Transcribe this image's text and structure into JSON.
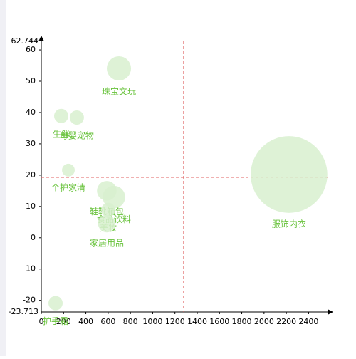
{
  "chart_data": {
    "type": "bubble",
    "points": [
      {
        "name": "珠宝文玩",
        "x": 697,
        "y": 54.1,
        "size": 290
      },
      {
        "name": "生鲜",
        "x": 179,
        "y": 38.9,
        "size": 100
      },
      {
        "name": "母婴宠物",
        "x": 319,
        "y": 38.4,
        "size": 100
      },
      {
        "name": "个护家清",
        "x": 243,
        "y": 21.6,
        "size": 80
      },
      {
        "name": "服饰内衣",
        "x": 2224,
        "y": 20.2,
        "size": 2900
      },
      {
        "name": "鞋靴箱包",
        "x": 588,
        "y": 15.0,
        "size": 190
      },
      {
        "name": "食品饮料",
        "x": 652,
        "y": 13.0,
        "size": 250
      },
      {
        "name": "美妆",
        "x": 601,
        "y": 8.9,
        "size": 100
      },
      {
        "name": "家居用品",
        "x": 588,
        "y": 4.5,
        "size": 150
      },
      {
        "name": "护手霜",
        "x": 128,
        "y": -20.9,
        "size": 100
      }
    ],
    "bubble_color": "#d8f0cf",
    "label_color": "#67c23a",
    "xlim": [
      0,
      2570
    ],
    "xticks": [
      0,
      200,
      400,
      600,
      800,
      1000,
      1200,
      1400,
      1600,
      1800,
      2000,
      2200,
      2400
    ],
    "ylim": [
      -23.713,
      62.744
    ],
    "yticks": [
      -20,
      -10,
      0,
      10,
      20,
      30,
      40,
      50,
      60
    ],
    "ylim_labels": [
      "-23.713",
      "62.744"
    ],
    "ref_x": 1278,
    "ref_y": 19.3,
    "ref_color": "#e06060"
  }
}
